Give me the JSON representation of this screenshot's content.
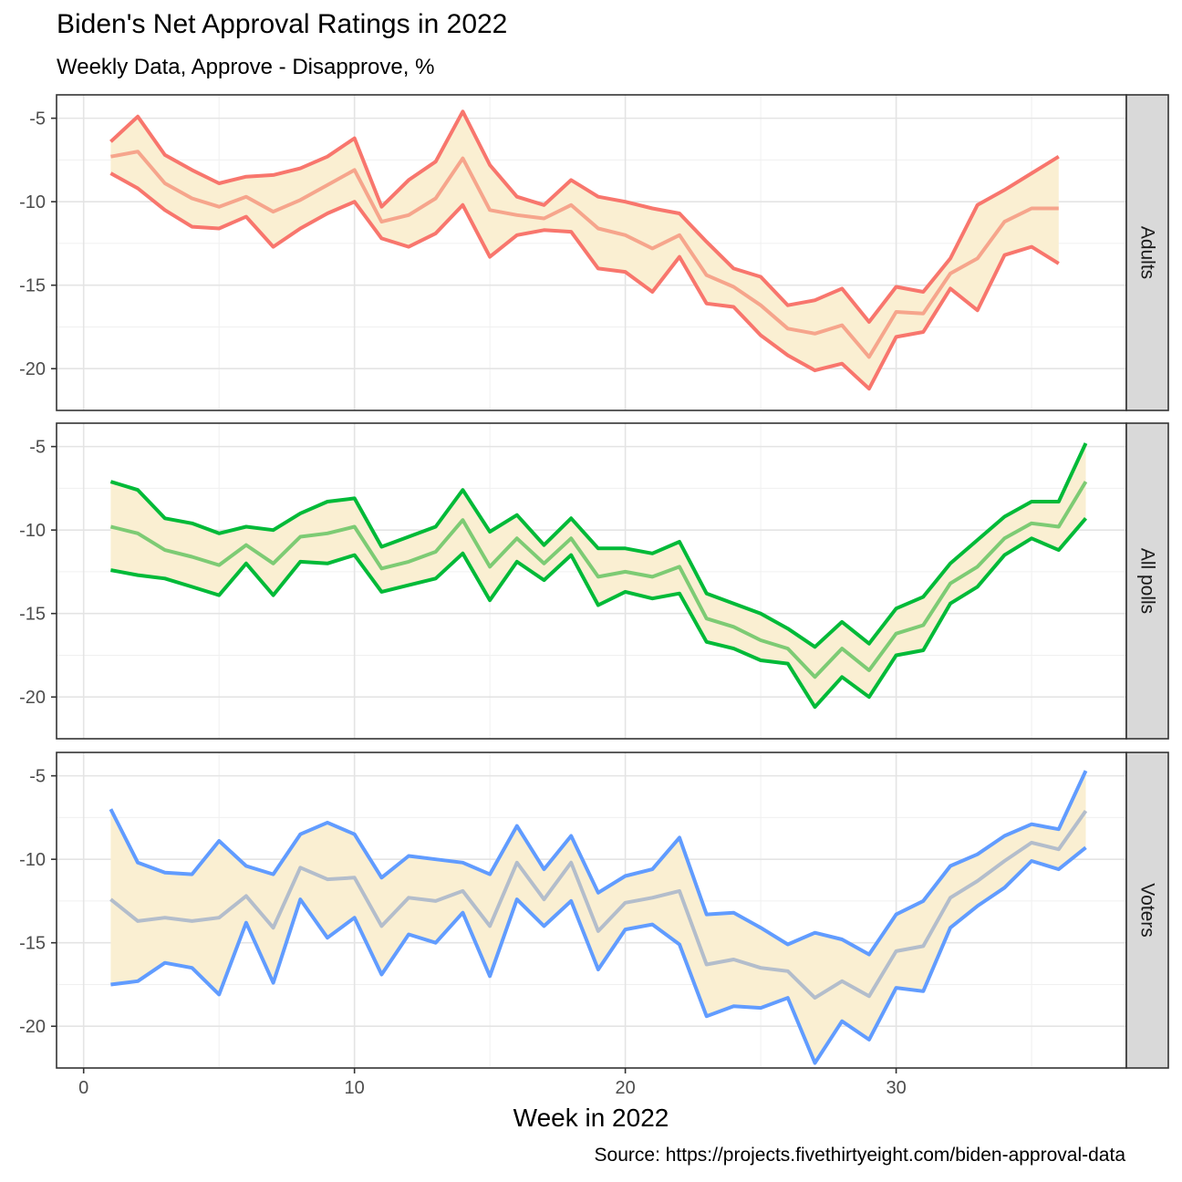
{
  "title": "Biden's Net Approval Ratings in 2022",
  "subtitle": "Weekly Data, Approve - Disapprove, %",
  "caption": "Source: https://projects.fivethirtyeight.com/biden-approval-data",
  "chart_data": {
    "type": "line",
    "title": "Biden's Net Approval Ratings in 2022",
    "subtitle": "Weekly Data, Approve - Disapprove, %",
    "xlabel": "Week in 2022",
    "ylabel": "",
    "xlim": [
      -1,
      38.5
    ],
    "xticks": [
      0,
      10,
      20,
      30
    ],
    "ylim": [
      -22.5,
      -3.6
    ],
    "yticks": [
      -5,
      -10,
      -15,
      -20
    ],
    "grid": true,
    "ribbon_color": "#FAEFD2",
    "panels": [
      {
        "strip": "Adults",
        "color": "#F8766D",
        "mid_color": "#F6A58C",
        "x": [
          1,
          2,
          3,
          4,
          5,
          6,
          7,
          8,
          9,
          10,
          11,
          12,
          13,
          14,
          15,
          16,
          17,
          18,
          19,
          20,
          21,
          22,
          23,
          24,
          25,
          26,
          27,
          28,
          29,
          30,
          31,
          32,
          33,
          34,
          35,
          36
        ],
        "upper": [
          -6.4,
          -4.9,
          -7.2,
          -8.1,
          -8.9,
          -8.5,
          -8.4,
          -8.0,
          -7.3,
          -6.2,
          -10.3,
          -8.7,
          -7.6,
          -4.6,
          -7.8,
          -9.7,
          -10.2,
          -8.7,
          -9.7,
          -10.0,
          -10.4,
          -10.7,
          -12.4,
          -14.0,
          -14.5,
          -16.2,
          -15.9,
          -15.2,
          -17.2,
          -15.1,
          -15.4,
          -13.4,
          -10.2,
          -9.3,
          -8.3,
          -7.3
        ],
        "mid": [
          -7.3,
          -7.0,
          -8.9,
          -9.8,
          -10.3,
          -9.7,
          -10.6,
          -9.9,
          -9.0,
          -8.1,
          -11.2,
          -10.8,
          -9.8,
          -7.4,
          -10.5,
          -10.8,
          -11.0,
          -10.2,
          -11.6,
          -12.0,
          -12.8,
          -12.0,
          -14.4,
          -15.1,
          -16.2,
          -17.6,
          -17.9,
          -17.4,
          -19.3,
          -16.6,
          -16.7,
          -14.3,
          -13.4,
          -11.2,
          -10.4,
          -10.4
        ],
        "lower": [
          -8.3,
          -9.2,
          -10.5,
          -11.5,
          -11.6,
          -10.9,
          -12.7,
          -11.6,
          -10.7,
          -10.0,
          -12.2,
          -12.7,
          -11.9,
          -10.2,
          -13.3,
          -12.0,
          -11.7,
          -11.8,
          -14.0,
          -14.2,
          -15.4,
          -13.3,
          -16.1,
          -16.3,
          -18.0,
          -19.2,
          -20.1,
          -19.7,
          -21.2,
          -18.1,
          -17.8,
          -15.2,
          -16.5,
          -13.2,
          -12.7,
          -13.7
        ]
      },
      {
        "strip": "All polls",
        "color": "#00BA38",
        "mid_color": "#7DCB74",
        "x": [
          1,
          2,
          3,
          4,
          5,
          6,
          7,
          8,
          9,
          10,
          11,
          12,
          13,
          14,
          15,
          16,
          17,
          18,
          19,
          20,
          21,
          22,
          23,
          24,
          25,
          26,
          27,
          28,
          29,
          30,
          31,
          32,
          33,
          34,
          35,
          36,
          37
        ],
        "upper": [
          -7.1,
          -7.6,
          -9.3,
          -9.6,
          -10.2,
          -9.8,
          -10.0,
          -9.0,
          -8.3,
          -8.1,
          -11.0,
          -10.4,
          -9.8,
          -7.6,
          -10.1,
          -9.1,
          -10.9,
          -9.3,
          -11.1,
          -11.1,
          -11.4,
          -10.7,
          -13.8,
          -14.4,
          -15.0,
          -15.9,
          -17.0,
          -15.5,
          -16.8,
          -14.7,
          -14.0,
          -12.0,
          -10.6,
          -9.2,
          -8.3,
          -8.3,
          -4.8
        ],
        "mid": [
          -9.8,
          -10.2,
          -11.2,
          -11.6,
          -12.1,
          -10.9,
          -12.0,
          -10.4,
          -10.2,
          -9.8,
          -12.3,
          -11.9,
          -11.3,
          -9.4,
          -12.2,
          -10.5,
          -12.0,
          -10.5,
          -12.8,
          -12.5,
          -12.8,
          -12.2,
          -15.3,
          -15.8,
          -16.6,
          -17.1,
          -18.8,
          -17.1,
          -18.4,
          -16.2,
          -15.7,
          -13.2,
          -12.2,
          -10.5,
          -9.6,
          -9.8,
          -7.1
        ],
        "lower": [
          -12.4,
          -12.7,
          -12.9,
          -13.4,
          -13.9,
          -12.0,
          -13.9,
          -11.9,
          -12.0,
          -11.5,
          -13.7,
          -13.3,
          -12.9,
          -11.4,
          -14.2,
          -11.9,
          -13.0,
          -11.5,
          -14.5,
          -13.7,
          -14.1,
          -13.8,
          -16.7,
          -17.1,
          -17.8,
          -18.0,
          -20.6,
          -18.8,
          -20.0,
          -17.5,
          -17.2,
          -14.4,
          -13.4,
          -11.5,
          -10.5,
          -11.2,
          -9.3
        ]
      },
      {
        "strip": "Voters",
        "color": "#619CFF",
        "mid_color": "#B3BDCB",
        "x": [
          1,
          2,
          3,
          4,
          5,
          6,
          7,
          8,
          9,
          10,
          11,
          12,
          13,
          14,
          15,
          16,
          17,
          18,
          19,
          20,
          21,
          22,
          23,
          24,
          25,
          26,
          27,
          28,
          29,
          30,
          31,
          32,
          33,
          34,
          35,
          36,
          37
        ],
        "upper": [
          -7.0,
          -10.2,
          -10.8,
          -10.9,
          -8.9,
          -10.4,
          -10.9,
          -8.5,
          -7.8,
          -8.5,
          -11.1,
          -9.8,
          -10.0,
          -10.2,
          -10.9,
          -8.0,
          -10.6,
          -8.6,
          -12.0,
          -11.0,
          -10.6,
          -8.7,
          -13.3,
          -13.2,
          -14.1,
          -15.1,
          -14.4,
          -14.8,
          -15.7,
          -13.3,
          -12.5,
          -10.4,
          -9.7,
          -8.6,
          -7.9,
          -8.2,
          -4.7
        ],
        "mid": [
          -12.4,
          -13.7,
          -13.5,
          -13.7,
          -13.5,
          -12.2,
          -14.1,
          -10.5,
          -11.2,
          -11.1,
          -14.0,
          -12.3,
          -12.5,
          -11.9,
          -14.0,
          -10.2,
          -12.4,
          -10.2,
          -14.3,
          -12.6,
          -12.3,
          -11.9,
          -16.3,
          -16.0,
          -16.5,
          -16.7,
          -18.3,
          -17.3,
          -18.2,
          -15.5,
          -15.2,
          -12.3,
          -11.3,
          -10.1,
          -9.0,
          -9.4,
          -7.1
        ],
        "lower": [
          -17.5,
          -17.3,
          -16.2,
          -16.5,
          -18.1,
          -13.8,
          -17.4,
          -12.4,
          -14.7,
          -13.5,
          -16.9,
          -14.5,
          -15.0,
          -13.2,
          -17.0,
          -12.4,
          -14.0,
          -12.5,
          -16.6,
          -14.2,
          -13.9,
          -15.1,
          -19.4,
          -18.8,
          -18.9,
          -18.3,
          -22.2,
          -19.7,
          -20.8,
          -17.7,
          -17.9,
          -14.1,
          -12.8,
          -11.7,
          -10.1,
          -10.6,
          -9.3
        ]
      }
    ]
  }
}
